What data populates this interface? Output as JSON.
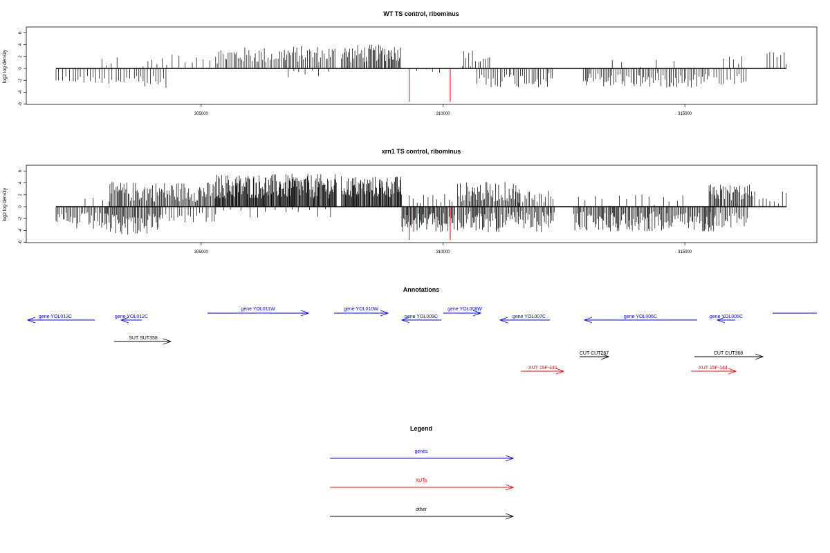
{
  "chart_data": [
    {
      "type": "bar",
      "title": "WT TS control, ribominus",
      "ylabel": "log2 log density",
      "xlabel": "",
      "xlim": [
        302000,
        317300
      ],
      "ylim": [
        -6,
        7
      ],
      "yticks": [
        -6,
        -4,
        -2,
        0,
        2,
        4,
        6
      ],
      "xticks": [
        305000,
        310000,
        315000
      ],
      "grid": false,
      "series": [
        {
          "color": "#000000",
          "segments": [
            {
              "from": 302000,
              "to": 302900,
              "step": 60,
              "sign": -1,
              "base": 1.6,
              "amp": 1.0
            },
            {
              "from": 302950,
              "to": 303300,
              "step": 120,
              "sign": 1,
              "base": 0.8,
              "amp": 1.2
            },
            {
              "from": 302950,
              "to": 303800,
              "step": 70,
              "sign": -1,
              "base": 1.5,
              "amp": 1.6
            },
            {
              "from": 303800,
              "to": 304300,
              "step": 50,
              "sign": -1,
              "base": 2.0,
              "amp": 1.6
            },
            {
              "from": 303800,
              "to": 304300,
              "step": 90,
              "sign": 1,
              "base": 0.8,
              "amp": 1.0
            },
            {
              "from": 304400,
              "to": 305300,
              "step": 110,
              "sign": 1,
              "base": 1.6,
              "amp": 1.6
            },
            {
              "from": 305300,
              "to": 306700,
              "step": 35,
              "sign": 1,
              "base": 1.8,
              "amp": 2.0
            },
            {
              "from": 306700,
              "to": 307800,
              "step": 30,
              "sign": 1,
              "base": 2.0,
              "amp": 2.0
            },
            {
              "from": 306800,
              "to": 307700,
              "step": 150,
              "sign": -1,
              "base": 0.8,
              "amp": 1.2
            },
            {
              "from": 307900,
              "to": 308500,
              "step": 25,
              "sign": 1,
              "base": 2.0,
              "amp": 2.2
            },
            {
              "from": 308500,
              "to": 309150,
              "step": 22,
              "sign": 1,
              "base": 2.2,
              "amp": 2.0
            },
            {
              "from": 309300,
              "to": 310000,
              "step": 160,
              "sign": -1,
              "base": 0.6,
              "amp": 1.0
            },
            {
              "from": 310400,
              "to": 311000,
              "step": 50,
              "sign": 1,
              "base": 1.2,
              "amp": 2.2
            },
            {
              "from": 310700,
              "to": 312300,
              "step": 45,
              "sign": -1,
              "base": 1.6,
              "amp": 1.8
            },
            {
              "from": 312900,
              "to": 315500,
              "step": 35,
              "sign": -1,
              "base": 1.6,
              "amp": 1.8
            },
            {
              "from": 313500,
              "to": 315000,
              "step": 300,
              "sign": 1,
              "base": 0.6,
              "amp": 1.0
            },
            {
              "from": 315600,
              "to": 316300,
              "step": 60,
              "sign": -1,
              "base": 1.5,
              "amp": 1.5
            },
            {
              "from": 315800,
              "to": 316300,
              "step": 110,
              "sign": 1,
              "base": 1.0,
              "amp": 1.2
            },
            {
              "from": 316700,
              "to": 317100,
              "step": 60,
              "sign": 1,
              "base": 1.5,
              "amp": 1.6
            }
          ]
        },
        {
          "color": "#ff0000",
          "bars": [
            {
              "x": 309300,
              "y": -5.6
            },
            {
              "x": 310150,
              "y": -5.6
            }
          ]
        }
      ]
    },
    {
      "type": "bar",
      "title": "xrn1 TS control, ribominus",
      "ylabel": "log2 log density",
      "xlabel": "",
      "xlim": [
        302000,
        317300
      ],
      "ylim": [
        -6,
        7
      ],
      "yticks": [
        -6,
        -4,
        -2,
        0,
        2,
        4,
        6
      ],
      "xticks": [
        305000,
        310000,
        315000
      ],
      "grid": false,
      "series": [
        {
          "color": "#000000",
          "segments": [
            {
              "from": 302000,
              "to": 303000,
              "step": 30,
              "sign": -1,
              "base": 2.0,
              "amp": 2.2
            },
            {
              "from": 302600,
              "to": 303000,
              "step": 150,
              "sign": 1,
              "base": 0.8,
              "amp": 1.2
            },
            {
              "from": 303000,
              "to": 304200,
              "step": 22,
              "sign": -1,
              "base": 2.4,
              "amp": 2.6
            },
            {
              "from": 303100,
              "to": 305300,
              "step": 22,
              "sign": 1,
              "base": 2.0,
              "amp": 2.4
            },
            {
              "from": 304200,
              "to": 305300,
              "step": 60,
              "sign": -1,
              "base": 1.4,
              "amp": 1.4
            },
            {
              "from": 305300,
              "to": 307800,
              "step": 14,
              "sign": 1,
              "base": 2.8,
              "amp": 3.0
            },
            {
              "from": 305300,
              "to": 307800,
              "step": 180,
              "sign": -1,
              "base": 0.8,
              "amp": 1.2
            },
            {
              "from": 307900,
              "to": 309150,
              "step": 14,
              "sign": 1,
              "base": 2.8,
              "amp": 2.6
            },
            {
              "from": 309150,
              "to": 310250,
              "step": 18,
              "sign": -1,
              "base": 2.2,
              "amp": 2.4
            },
            {
              "from": 309300,
              "to": 310200,
              "step": 80,
              "sign": 1,
              "base": 1.0,
              "amp": 1.4
            },
            {
              "from": 310300,
              "to": 311600,
              "step": 22,
              "sign": 1,
              "base": 2.0,
              "amp": 2.4
            },
            {
              "from": 310300,
              "to": 312300,
              "step": 22,
              "sign": -1,
              "base": 2.0,
              "amp": 2.6
            },
            {
              "from": 311500,
              "to": 312300,
              "step": 40,
              "sign": 1,
              "base": 1.4,
              "amp": 1.6
            },
            {
              "from": 312700,
              "to": 315600,
              "step": 22,
              "sign": -1,
              "base": 2.0,
              "amp": 2.4
            },
            {
              "from": 312800,
              "to": 315000,
              "step": 160,
              "sign": 1,
              "base": 0.8,
              "amp": 1.4
            },
            {
              "from": 315500,
              "to": 316400,
              "step": 22,
              "sign": 1,
              "base": 2.0,
              "amp": 2.0
            },
            {
              "from": 315500,
              "to": 316300,
              "step": 30,
              "sign": -1,
              "base": 1.8,
              "amp": 2.0
            },
            {
              "from": 316400,
              "to": 317100,
              "step": 70,
              "sign": 1,
              "base": 1.2,
              "amp": 1.6
            }
          ]
        },
        {
          "color": "#ff0000",
          "bars": [
            {
              "x": 309300,
              "y": -5.6
            },
            {
              "x": 310150,
              "y": -5.6
            }
          ]
        }
      ]
    }
  ],
  "annotations": {
    "title": "Annotations",
    "colors": {
      "gene": "#0000ff",
      "xut": "#ff0000",
      "other": "#000000"
    },
    "features": [
      {
        "label": "gene YOL013C",
        "kind": "gene",
        "strand": "-"
      },
      {
        "label": "gene YOL012C",
        "kind": "gene",
        "strand": "-"
      },
      {
        "label": "gene YOL011W",
        "kind": "gene",
        "strand": "+"
      },
      {
        "label": "gene YOL010W",
        "kind": "gene",
        "strand": "+"
      },
      {
        "label": "gene YOL009C",
        "kind": "gene",
        "strand": "-"
      },
      {
        "label": "gene YOL008W",
        "kind": "gene",
        "strand": "+"
      },
      {
        "label": "gene YOL007C",
        "kind": "gene",
        "strand": "-"
      },
      {
        "label": "gene YOL006C",
        "kind": "gene",
        "strand": "-"
      },
      {
        "label": "gene YOL005C",
        "kind": "gene",
        "strand": "-"
      },
      {
        "label": "",
        "kind": "gene",
        "strand": "none"
      },
      {
        "label": "SUT SUT358",
        "kind": "other",
        "strand": "+"
      },
      {
        "label": "CUT CUT267",
        "kind": "other",
        "strand": "+"
      },
      {
        "label": "CUT CUT368",
        "kind": "other",
        "strand": "+"
      },
      {
        "label": "XUT 15F-141",
        "kind": "xut",
        "strand": "+"
      },
      {
        "label": "XUT 15F-144",
        "kind": "xut",
        "strand": "+"
      }
    ]
  },
  "legend": {
    "title": "Legend",
    "items": [
      {
        "label": "genes",
        "color": "#0000ff"
      },
      {
        "label": "XUTs",
        "color": "#ff0000"
      },
      {
        "label": "other",
        "color": "#000000"
      }
    ]
  }
}
